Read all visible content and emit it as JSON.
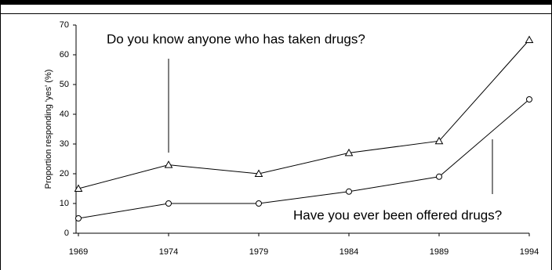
{
  "chart_data": {
    "type": "line",
    "ylabel": "Proportion responding 'yes' (%)",
    "x": [
      1969,
      1974,
      1979,
      1984,
      1989,
      1994
    ],
    "series": [
      {
        "name": "Do you know anyone who has taken drugs?",
        "color": "#000000",
        "marker": "triangle",
        "values": [
          15,
          23,
          20,
          27,
          31,
          65
        ]
      },
      {
        "name": "Have you ever been offered drugs?",
        "color": "#000000",
        "marker": "circle",
        "values": [
          5,
          10,
          10,
          14,
          19,
          45
        ]
      }
    ],
    "xlim": [
      1969,
      1994
    ],
    "xticks": [
      1969,
      1974,
      1979,
      1984,
      1989,
      1994
    ],
    "ylim": [
      0,
      70
    ],
    "yticks": [
      0,
      10,
      20,
      30,
      40,
      50,
      60,
      70
    ]
  }
}
